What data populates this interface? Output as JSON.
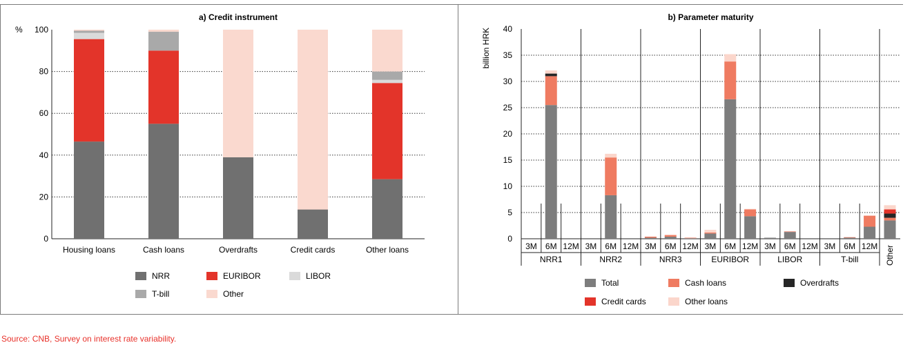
{
  "source": "Source: CNB, Survey on interest rate variability.",
  "colors": {
    "NRR": "#707070",
    "EURIBOR": "#e3342a",
    "LIBOR": "#dadada",
    "T-bill": "#a9a9a9",
    "Other": "#fad9cf",
    "Total": "#7d7d7d",
    "Cash loans": "#ef7b61",
    "Overdrafts": "#262626",
    "Credit cards": "#e3342a",
    "Other loans": "#fbd6cb"
  },
  "chart_data": [
    {
      "type": "bar",
      "stacked": true,
      "title": "a) Credit instrument",
      "ylabel": "%",
      "ylim": [
        0,
        100
      ],
      "yticks": [
        0,
        20,
        40,
        60,
        80,
        100
      ],
      "categories": [
        "Housing loans",
        "Cash loans",
        "Overdrafts",
        "Credit cards",
        "Other loans"
      ],
      "series": [
        {
          "name": "NRR",
          "values": [
            46.5,
            55,
            39,
            14,
            28.5
          ]
        },
        {
          "name": "EURIBOR",
          "values": [
            49,
            35,
            0,
            0,
            46
          ]
        },
        {
          "name": "LIBOR",
          "values": [
            3,
            0,
            0,
            0,
            1.5
          ]
        },
        {
          "name": "T-bill",
          "values": [
            1,
            9,
            0,
            0,
            4
          ]
        },
        {
          "name": "Other",
          "values": [
            0.5,
            1,
            61,
            86,
            20
          ]
        }
      ],
      "legend": [
        [
          "NRR",
          "EURIBOR",
          "LIBOR"
        ],
        [
          "T-bill",
          "Other"
        ]
      ],
      "legend_position": "bottom"
    },
    {
      "type": "bar",
      "stacked": true,
      "title": "b) Parameter maturity",
      "ylabel": "billion HRK",
      "ylim": [
        0,
        40
      ],
      "yticks": [
        0,
        5,
        10,
        15,
        20,
        25,
        30,
        35,
        40
      ],
      "groups": [
        "NRR1",
        "NRR2",
        "NRR3",
        "EURIBOR",
        "LIBOR",
        "T-bill"
      ],
      "maturities": [
        "3M",
        "6M",
        "12M"
      ],
      "extra_category": "Other",
      "series": [
        {
          "name": "Total",
          "values": [
            0,
            25.5,
            0,
            0,
            8.3,
            0,
            0.2,
            0.4,
            0.1,
            1,
            26.6,
            4.3,
            0.2,
            1.3,
            0,
            0,
            0.2,
            2.3,
            3.5
          ]
        },
        {
          "name": "Cash loans",
          "values": [
            0,
            5.5,
            0,
            0,
            7.2,
            0,
            0.2,
            0.3,
            0.1,
            0.2,
            7.2,
            1.3,
            0,
            0.1,
            0,
            0,
            0.1,
            2.1,
            0.5
          ]
        },
        {
          "name": "Overdrafts",
          "values": [
            0,
            0.5,
            0,
            0,
            0,
            0,
            0,
            0,
            0,
            0,
            0,
            0,
            0,
            0,
            0,
            0,
            0,
            0,
            0.8
          ]
        },
        {
          "name": "Credit cards",
          "values": [
            0,
            0,
            0,
            0,
            0,
            0,
            0,
            0,
            0,
            0,
            0,
            0,
            0,
            0,
            0,
            0,
            0,
            0,
            0.8
          ]
        },
        {
          "name": "Other loans",
          "values": [
            0,
            0.6,
            0,
            0,
            0.7,
            0,
            0,
            0.1,
            0,
            0.5,
            1.4,
            0.1,
            0,
            0,
            0,
            0,
            0,
            0,
            0.8
          ]
        }
      ],
      "legend": [
        [
          "Total",
          "Cash loans",
          "Overdrafts"
        ],
        [
          "Credit cards",
          "Other loans"
        ]
      ],
      "legend_position": "bottom"
    }
  ]
}
